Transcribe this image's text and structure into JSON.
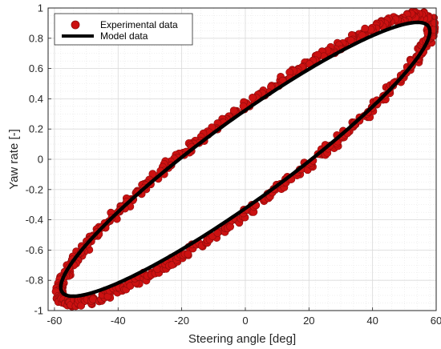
{
  "chart_data": {
    "type": "scatter",
    "xlabel": "Steering angle [deg]",
    "ylabel": "Yaw rate [-]",
    "xlim": [
      -62,
      60
    ],
    "ylim": [
      -1,
      1
    ],
    "xticks": [
      -60,
      -40,
      -20,
      0,
      20,
      40,
      60
    ],
    "yticks": [
      -1,
      -0.8,
      -0.6,
      -0.4,
      -0.2,
      0,
      0.2,
      0.4,
      0.6,
      0.8,
      1
    ],
    "ytick_labels": [
      "-1",
      "-0.8",
      "-0.6",
      "-0.4",
      "-0.2",
      "0",
      "0.2",
      "0.4",
      "0.6",
      "0.8",
      "1"
    ],
    "grid": true,
    "legend_position": "top-left",
    "colors": {
      "experimental": "#cc1111",
      "experimental_edge": "#8a0a0a",
      "model": "#000000",
      "grid_major": "#d9d9d9",
      "axis": "#262626"
    },
    "series": [
      {
        "name": "Experimental data",
        "marker": "circle",
        "description_params": {
          "amplitude_x": 58.5,
          "amplitude_y": 0.95,
          "phase_lag_deg": 22
        }
      },
      {
        "name": "Model data",
        "line": "solid",
        "x": [
          58,
          57.1,
          54.4,
          50.2,
          44.4,
          37.3,
          29,
          19.8,
          10,
          -0.1,
          -10.1,
          -19.9,
          -29,
          -37.3,
          -44.4,
          -50.2,
          -54.4,
          -57.1,
          -58,
          -57.1,
          -54.4,
          -50.2,
          -44.4,
          -37.3,
          -29,
          -19.8,
          -10,
          0.1,
          10.1,
          19.9,
          29,
          37.3,
          44.4,
          50.2,
          54.4,
          57.1,
          58
        ],
        "y": [
          0.88,
          0.9,
          0.86,
          0.76,
          0.62,
          0.44,
          0.24,
          0.02,
          -0.18,
          -0.37,
          -0.54,
          -0.68,
          -0.79,
          -0.85,
          -0.89,
          -0.9,
          -0.88,
          -0.83,
          -0.9,
          -0.9,
          -0.86,
          -0.76,
          -0.62,
          -0.44,
          -0.24,
          -0.02,
          0.18,
          0.37,
          0.54,
          0.68,
          0.79,
          0.85,
          0.89,
          0.9,
          0.88,
          0.83,
          0.88
        ]
      }
    ]
  }
}
